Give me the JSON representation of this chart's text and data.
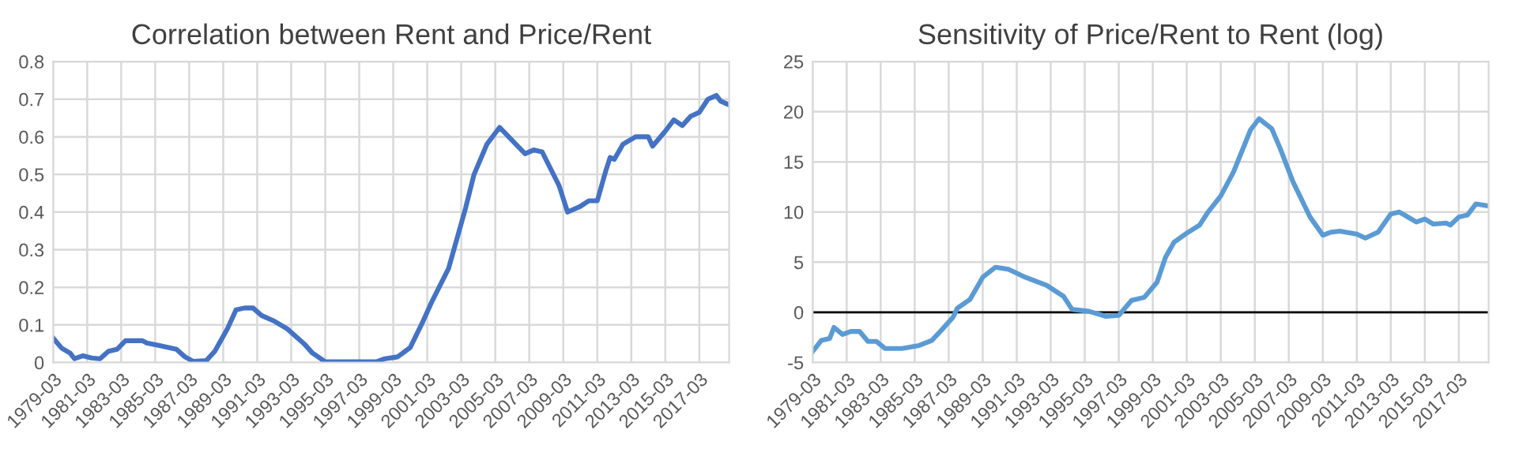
{
  "chart_data": [
    {
      "type": "line",
      "title": "Correlation between Rent and Price/Rent",
      "x": [
        "1979-03",
        "1979-09",
        "1980-03",
        "1980-06",
        "1980-12",
        "1981-06",
        "1981-12",
        "1982-06",
        "1982-12",
        "1983-06",
        "1984-06",
        "1984-09",
        "1985-06",
        "1986-06",
        "1986-12",
        "1987-06",
        "1988-03",
        "1988-09",
        "1989-06",
        "1989-12",
        "1990-06",
        "1990-12",
        "1991-06",
        "1992-03",
        "1992-12",
        "1993-12",
        "1994-06",
        "1995-03",
        "1998-03",
        "1998-09",
        "1999-06",
        "2000-03",
        "2000-12",
        "2001-06",
        "2002-06",
        "2003-06",
        "2003-12",
        "2004-09",
        "2005-06",
        "2006-03",
        "2006-12",
        "2007-06",
        "2007-12",
        "2008-12",
        "2009-06",
        "2010-03",
        "2010-09",
        "2011-03",
        "2011-09",
        "2011-12",
        "2012-03",
        "2012-09",
        "2013-06",
        "2014-03",
        "2014-06",
        "2015-03",
        "2015-09",
        "2016-03",
        "2016-09",
        "2017-03",
        "2017-09",
        "2018-03",
        "2018-06",
        "2018-12"
      ],
      "series": [
        {
          "color": "#4472c4",
          "values": [
            0.065,
            0.038,
            0.025,
            0.01,
            0.018,
            0.012,
            0.01,
            0.03,
            0.035,
            0.058,
            0.058,
            0.052,
            0.045,
            0.035,
            0.015,
            0.003,
            0.005,
            0.03,
            0.09,
            0.14,
            0.145,
            0.145,
            0.125,
            0.11,
            0.09,
            0.05,
            0.025,
            0.002,
            0.002,
            0.01,
            0.015,
            0.04,
            0.11,
            0.16,
            0.25,
            0.41,
            0.5,
            0.58,
            0.625,
            0.59,
            0.555,
            0.565,
            0.56,
            0.47,
            0.4,
            0.415,
            0.43,
            0.43,
            0.51,
            0.545,
            0.54,
            0.58,
            0.6,
            0.6,
            0.575,
            0.615,
            0.645,
            0.63,
            0.655,
            0.665,
            0.7,
            0.71,
            0.695,
            0.685
          ]
        }
      ],
      "xlim": [
        "1979-03",
        "2018-12"
      ],
      "xticks": [
        "1979-03",
        "1981-03",
        "1983-03",
        "1985-03",
        "1987-03",
        "1989-03",
        "1991-03",
        "1993-03",
        "1995-03",
        "1997-03",
        "1999-03",
        "2001-03",
        "2003-03",
        "2005-03",
        "2007-03",
        "2009-03",
        "2011-03",
        "2013-03",
        "2015-03",
        "2017-03"
      ],
      "ylim": [
        0,
        0.8
      ],
      "yticks": [
        0,
        0.1,
        0.2,
        0.3,
        0.4,
        0.5,
        0.6,
        0.7,
        0.8
      ],
      "grid": true,
      "legend": false
    },
    {
      "type": "line",
      "title": "Sensitivity of Price/Rent to Rent (log)",
      "x": [
        "1979-03",
        "1979-09",
        "1980-03",
        "1980-06",
        "1980-12",
        "1981-06",
        "1981-12",
        "1982-06",
        "1982-12",
        "1983-06",
        "1984-06",
        "1985-06",
        "1986-03",
        "1986-09",
        "1987-06",
        "1987-09",
        "1988-06",
        "1989-03",
        "1989-12",
        "1990-09",
        "1991-03",
        "1991-09",
        "1992-12",
        "1993-12",
        "1994-06",
        "1995-06",
        "1996-06",
        "1997-03",
        "1997-12",
        "1998-09",
        "1999-06",
        "1999-12",
        "2000-06",
        "2001-03",
        "2001-12",
        "2002-06",
        "2003-03",
        "2003-12",
        "2004-12",
        "2005-06",
        "2006-03",
        "2006-09",
        "2007-06",
        "2008-06",
        "2009-03",
        "2009-09",
        "2010-03",
        "2011-03",
        "2011-09",
        "2012-06",
        "2013-03",
        "2013-09",
        "2014-09",
        "2015-03",
        "2015-09",
        "2016-06",
        "2016-09",
        "2017-03",
        "2017-09",
        "2018-03",
        "2018-12"
      ],
      "series": [
        {
          "color": "#5b9bd5",
          "values": [
            -3.9,
            -2.8,
            -2.6,
            -1.5,
            -2.2,
            -1.9,
            -1.9,
            -2.9,
            -2.9,
            -3.6,
            -3.6,
            -3.3,
            -2.8,
            -1.9,
            -0.5,
            0.4,
            1.3,
            3.5,
            4.5,
            4.3,
            3.9,
            3.5,
            2.7,
            1.6,
            0.3,
            0.1,
            -0.4,
            -0.3,
            1.2,
            1.5,
            3,
            5.5,
            7,
            7.9,
            8.7,
            10,
            11.6,
            14,
            18.2,
            19.3,
            18.3,
            16.3,
            13,
            9.5,
            7.7,
            8,
            8.1,
            7.8,
            7.4,
            8,
            9.8,
            10,
            9,
            9.3,
            8.8,
            8.9,
            8.7,
            9.5,
            9.7,
            10.8,
            10.6
          ]
        }
      ],
      "xlim": [
        "1979-03",
        "2018-12"
      ],
      "xticks": [
        "1979-03",
        "1981-03",
        "1983-03",
        "1985-03",
        "1987-03",
        "1989-03",
        "1991-03",
        "1993-03",
        "1995-03",
        "1997-03",
        "1999-03",
        "2001-03",
        "2003-03",
        "2005-03",
        "2007-03",
        "2009-03",
        "2011-03",
        "2013-03",
        "2015-03",
        "2017-03"
      ],
      "ylim": [
        -5,
        25
      ],
      "yticks": [
        -5,
        0,
        5,
        10,
        15,
        20,
        25
      ],
      "grid": true,
      "legend": false,
      "ref_lines": [
        {
          "axis": "y",
          "value": 0,
          "color": "#000000"
        }
      ]
    }
  ]
}
